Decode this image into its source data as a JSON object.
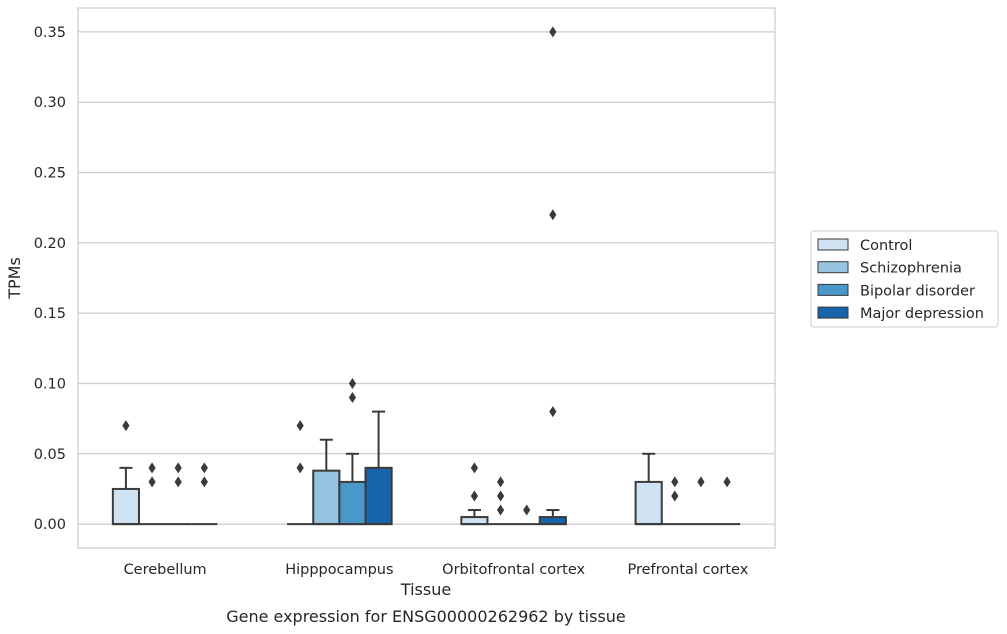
{
  "chart_data": {
    "type": "box",
    "caption": "Gene expression for ENSG00000262962 by tissue",
    "xlabel": "Tissue",
    "ylabel": "TPMs",
    "ylim": [
      -0.017,
      0.367
    ],
    "yticks": [
      "0.00",
      "0.05",
      "0.10",
      "0.15",
      "0.20",
      "0.25",
      "0.30",
      "0.35"
    ],
    "grid": "horizontal",
    "legend_position": "right",
    "categories": [
      "Cerebellum",
      "Hipppocampus",
      "Orbitofrontal cortex",
      "Prefrontal cortex"
    ],
    "series": [
      {
        "name": "Control",
        "color": "#d0e1f2",
        "boxes": [
          {
            "q1": 0,
            "q3": 0.025,
            "median": 0,
            "whisker_low": 0,
            "whisker_high": 0.04,
            "outliers": [
              0.07
            ]
          },
          {
            "q1": 0,
            "q3": 0,
            "median": 0,
            "whisker_low": 0,
            "whisker_high": 0,
            "outliers": [
              0.04,
              0.07
            ]
          },
          {
            "q1": 0,
            "q3": 0.005,
            "median": 0,
            "whisker_low": 0,
            "whisker_high": 0.01,
            "outliers": [
              0.02,
              0.04
            ]
          },
          {
            "q1": 0,
            "q3": 0.03,
            "median": 0,
            "whisker_low": 0,
            "whisker_high": 0.05,
            "outliers": []
          }
        ]
      },
      {
        "name": "Schizophrenia",
        "color": "#94c4df",
        "boxes": [
          {
            "q1": 0,
            "q3": 0,
            "median": 0,
            "whisker_low": 0,
            "whisker_high": 0,
            "outliers": [
              0.03,
              0.04
            ]
          },
          {
            "q1": 0,
            "q3": 0.038,
            "median": 0,
            "whisker_low": 0,
            "whisker_high": 0.06,
            "outliers": []
          },
          {
            "q1": 0,
            "q3": 0,
            "median": 0,
            "whisker_low": 0,
            "whisker_high": 0,
            "outliers": [
              0.01,
              0.02,
              0.03
            ]
          },
          {
            "q1": 0,
            "q3": 0,
            "median": 0,
            "whisker_low": 0,
            "whisker_high": 0,
            "outliers": [
              0.02,
              0.03
            ]
          }
        ]
      },
      {
        "name": "Bipolar disorder",
        "color": "#4a98c9",
        "boxes": [
          {
            "q1": 0,
            "q3": 0,
            "median": 0,
            "whisker_low": 0,
            "whisker_high": 0,
            "outliers": [
              0.03,
              0.04
            ]
          },
          {
            "q1": 0,
            "q3": 0.03,
            "median": 0,
            "whisker_low": 0,
            "whisker_high": 0.05,
            "outliers": [
              0.09,
              0.1
            ]
          },
          {
            "q1": 0,
            "q3": 0,
            "median": 0,
            "whisker_low": 0,
            "whisker_high": 0,
            "outliers": [
              0.01
            ]
          },
          {
            "q1": 0,
            "q3": 0,
            "median": 0,
            "whisker_low": 0,
            "whisker_high": 0,
            "outliers": [
              0.03
            ]
          }
        ]
      },
      {
        "name": "Major depression",
        "color": "#1764ab",
        "boxes": [
          {
            "q1": 0,
            "q3": 0,
            "median": 0,
            "whisker_low": 0,
            "whisker_high": 0,
            "outliers": [
              0.03,
              0.04
            ]
          },
          {
            "q1": 0,
            "q3": 0.04,
            "median": 0,
            "whisker_low": 0,
            "whisker_high": 0.08,
            "outliers": []
          },
          {
            "q1": 0,
            "q3": 0.005,
            "median": 0,
            "whisker_low": 0,
            "whisker_high": 0.01,
            "outliers": [
              0.08,
              0.22,
              0.35
            ]
          },
          {
            "q1": 0,
            "q3": 0,
            "median": 0,
            "whisker_low": 0,
            "whisker_high": 0,
            "outliers": [
              0.03
            ]
          }
        ]
      }
    ]
  }
}
